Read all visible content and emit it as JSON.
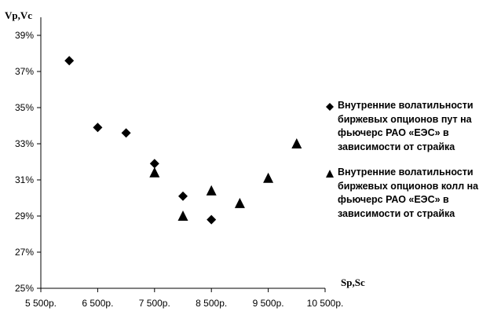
{
  "chart_data": {
    "type": "scatter",
    "xlabel": "Sp,Sc",
    "ylabel": "Vp,Vc",
    "xlim": [
      5500,
      10500
    ],
    "ylim": [
      25,
      40
    ],
    "x_ticks": [
      5500,
      6500,
      7500,
      8500,
      9500,
      10500
    ],
    "x_tick_labels": [
      "5 500р.",
      "6 500р.",
      "7 500р.",
      "8 500р.",
      "9 500р.",
      "10 500р."
    ],
    "y_ticks": [
      25,
      27,
      29,
      31,
      33,
      35,
      37,
      39
    ],
    "y_tick_labels": [
      "25%",
      "27%",
      "29%",
      "31%",
      "33%",
      "35%",
      "37%",
      "39%"
    ],
    "grid": false,
    "legend_position": "right",
    "series": [
      {
        "name": "Внутренние волатильности биржевых опционов пут на фьючерс РАО «ЕЭС» в зависимости от страйка",
        "marker": "diamond",
        "color": "#000000",
        "points": [
          [
            6000,
            37.6
          ],
          [
            6500,
            33.9
          ],
          [
            7000,
            33.6
          ],
          [
            7500,
            31.9
          ],
          [
            8000,
            30.1
          ],
          [
            8500,
            28.8
          ]
        ]
      },
      {
        "name": "Внутренние волатильности биржевых опционов колл на фьючерс РАО «ЕЭС» в зависимости от страйка",
        "marker": "triangle",
        "color": "#000000",
        "points": [
          [
            7500,
            31.4
          ],
          [
            8000,
            29.0
          ],
          [
            8500,
            30.4
          ],
          [
            9000,
            29.7
          ],
          [
            9500,
            31.1
          ],
          [
            10000,
            33.0
          ]
        ]
      }
    ]
  }
}
